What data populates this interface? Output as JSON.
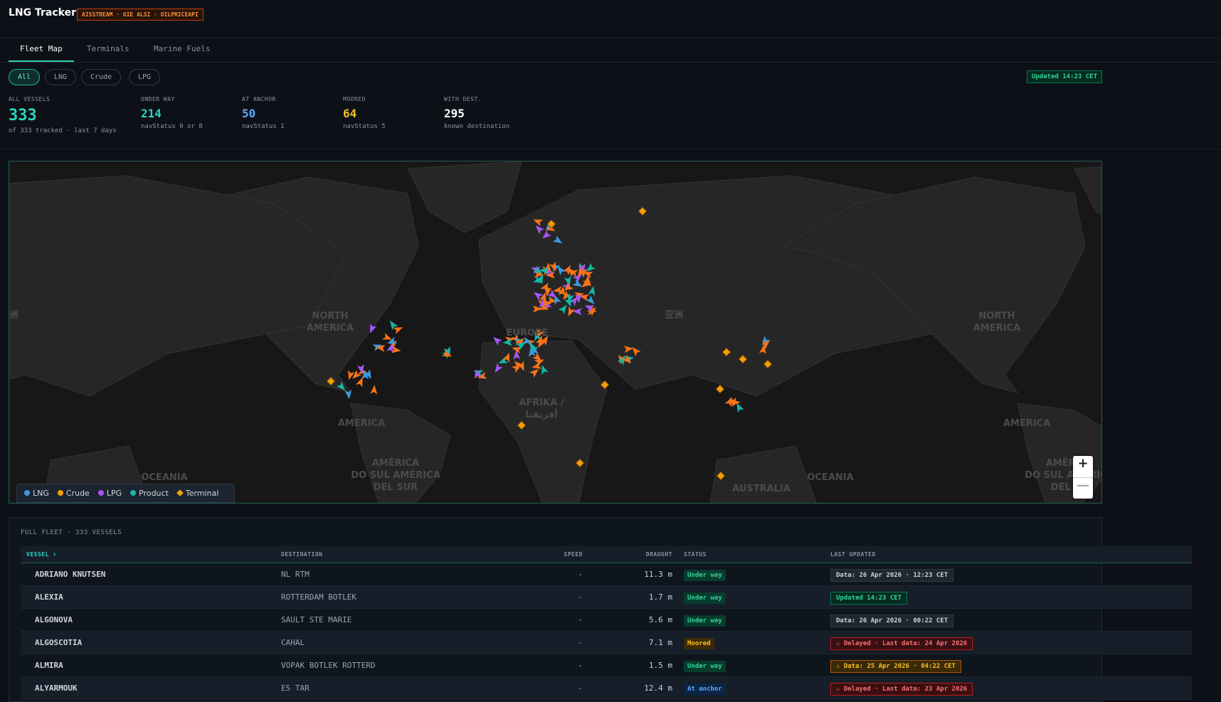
{
  "header": {
    "title": "LNG Tracker",
    "badge": "AISSTREAM · GIE ALSI · OILPRICEAPI"
  },
  "tabs": [
    "Fleet Map",
    "Terminals",
    "Marine Fuels"
  ],
  "filters": [
    "All",
    "LNG",
    "Crude",
    "LPG"
  ],
  "updated": "Updated 14:23 CET",
  "stats": [
    {
      "label": "ALL VESSELS",
      "value": 333,
      "sub": "of 333 tracked · last 7 days"
    },
    {
      "label": "UNDER WAY",
      "value": 214,
      "sub": "navStatus 0 or 8"
    },
    {
      "label": "AT ANCHOR",
      "value": 50,
      "sub": "navStatus 1"
    },
    {
      "label": "MOORED",
      "value": 64,
      "sub": "navStatus 5"
    },
    {
      "label": "WITH DEST.",
      "value": 295,
      "sub": "known destination"
    }
  ],
  "map": {
    "labels": [
      {
        "lines": [
          "NORTH",
          "AMERICA"
        ]
      },
      {
        "lines": [
          "EUROPE"
        ]
      },
      {
        "lines": [
          "AFRIKA /",
          "أفريقيا"
        ]
      },
      {
        "lines": [
          "AMERICA"
        ]
      },
      {
        "lines": [
          "AMÉRICA",
          "DO SUL AMÉRICA",
          "DEL SUR"
        ]
      },
      {
        "lines": [
          "OCEANIA"
        ]
      },
      {
        "lines": [
          "AUSTRALIA"
        ]
      },
      {
        "lines": [
          "OCEANIA"
        ]
      },
      {
        "lines": [
          "NORTH",
          "AMERICA"
        ]
      },
      {
        "lines": [
          "AMERICA"
        ]
      },
      {
        "lines": [
          "亚洲"
        ]
      },
      {
        "lines": [
          "洲"
        ]
      },
      {
        "lines": [
          "AMÉRICA",
          "DO SUL AMÉRICA",
          "DEL SU"
        ]
      }
    ],
    "legend": [
      "LNG",
      "Crude",
      "LPG",
      "Product",
      "Terminal"
    ],
    "zoom_in": "+",
    "zoom_out": "—"
  },
  "table": {
    "title": "FULL FLEET · 333 VESSELS",
    "columns": [
      "VESSEL ↑",
      "DESTINATION",
      "SPEED",
      "DRAUGHT",
      "STATUS",
      "LAST UPDATED"
    ],
    "rows": [
      [
        "ADRIANO KNUTSEN",
        "NL RTM",
        "-",
        "11.3 m",
        "Under way",
        "Data: 26 Apr 2026 · 12:23 CET"
      ],
      [
        "ALEXIA",
        "ROTTERDAM BOTLEK",
        "-",
        "1.7 m",
        "Under way",
        "Updated 14:23 CET"
      ],
      [
        "ALGONOVA",
        "SAULT STE MARIE",
        "-",
        "5.6 m",
        "Under way",
        "Data: 26 Apr 2026 · 00:22 CET"
      ],
      [
        "ALGOSCOTIA",
        "CAHAL",
        "-",
        "7.1 m",
        "Moored",
        "⚠ Delayed · Last data: 24 Apr 2026"
      ],
      [
        "ALMIRA",
        "VOPAK BOTLEK ROTTERD",
        "-",
        "1.5 m",
        "Under way",
        "⚠ Data: 25 Apr 2026 · 04:22 CET"
      ],
      [
        "ALYARMOUK",
        "ES TAR",
        "-",
        "12.4 m",
        "At anchor",
        "⚠ Delayed · Last data: 23 Apr 2026"
      ]
    ]
  }
}
